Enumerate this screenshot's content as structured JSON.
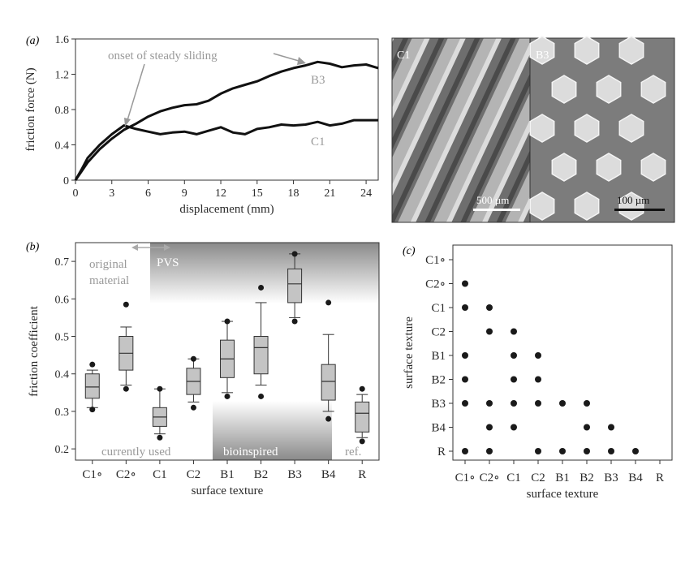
{
  "panel_a": {
    "panel_label": "(a)",
    "annotation_onset": "onset of steady sliding",
    "images": [
      {
        "label": "C1",
        "scale_bar": "500 µm"
      },
      {
        "label": "B3",
        "scale_bar": "100 µm"
      }
    ]
  },
  "panel_b": {
    "panel_label": "(b)",
    "region_labels": {
      "original_material": [
        "original",
        "material"
      ],
      "pvs": "PVS",
      "currently_used": "currently used",
      "bioinspired": "bioinspired",
      "ref": "ref."
    }
  },
  "panel_c": {
    "panel_label": "(c)"
  },
  "chart_data": [
    {
      "id": "a",
      "type": "line",
      "xlabel": "displacement (mm)",
      "ylabel": "friction force (N)",
      "xlim": [
        0,
        25
      ],
      "ylim": [
        0,
        1.6
      ],
      "xticks": [
        0,
        3,
        6,
        9,
        12,
        15,
        18,
        21,
        24
      ],
      "yticks": [
        0,
        0.4,
        0.8,
        1.2,
        1.6
      ],
      "series": [
        {
          "name": "B3",
          "x": [
            0,
            0.5,
            1,
            2,
            3,
            4,
            5,
            6,
            7,
            8,
            9,
            10,
            11,
            12,
            13,
            14,
            15,
            16,
            17,
            18,
            19,
            20,
            21,
            22,
            23,
            24,
            25
          ],
          "y": [
            0,
            0.1,
            0.2,
            0.35,
            0.47,
            0.57,
            0.64,
            0.72,
            0.78,
            0.82,
            0.85,
            0.86,
            0.9,
            0.98,
            1.04,
            1.08,
            1.12,
            1.18,
            1.23,
            1.27,
            1.3,
            1.34,
            1.32,
            1.28,
            1.3,
            1.31,
            1.27
          ]
        },
        {
          "name": "C1",
          "x": [
            0,
            0.5,
            1,
            2,
            3,
            4,
            5,
            6,
            7,
            8,
            9,
            10,
            11,
            12,
            13,
            14,
            15,
            16,
            17,
            18,
            19,
            20,
            21,
            22,
            23,
            24,
            25
          ],
          "y": [
            0,
            0.12,
            0.25,
            0.4,
            0.52,
            0.62,
            0.58,
            0.55,
            0.52,
            0.54,
            0.55,
            0.52,
            0.56,
            0.6,
            0.54,
            0.52,
            0.58,
            0.6,
            0.63,
            0.62,
            0.63,
            0.66,
            0.62,
            0.64,
            0.68,
            0.68,
            0.68
          ]
        }
      ]
    },
    {
      "id": "b",
      "type": "box",
      "xlabel": "surface texture",
      "ylabel": "friction coefficient",
      "ylim": [
        0.17,
        0.75
      ],
      "yticks": [
        0.2,
        0.3,
        0.4,
        0.5,
        0.6,
        0.7
      ],
      "categories": [
        "C1∘",
        "C2∘",
        "C1",
        "C2",
        "B1",
        "B2",
        "B3",
        "B4",
        "R"
      ],
      "boxes": [
        {
          "whisker_low": 0.31,
          "q1": 0.335,
          "median": 0.365,
          "q3": 0.4,
          "whisker_high": 0.41,
          "outliers": [
            0.305,
            0.425
          ]
        },
        {
          "whisker_low": 0.37,
          "q1": 0.41,
          "median": 0.455,
          "q3": 0.5,
          "whisker_high": 0.525,
          "outliers": [
            0.36,
            0.585
          ]
        },
        {
          "whisker_low": 0.24,
          "q1": 0.26,
          "median": 0.285,
          "q3": 0.31,
          "whisker_high": 0.36,
          "outliers": [
            0.23,
            0.36
          ]
        },
        {
          "whisker_low": 0.325,
          "q1": 0.345,
          "median": 0.38,
          "q3": 0.415,
          "whisker_high": 0.44,
          "outliers": [
            0.31,
            0.44
          ]
        },
        {
          "whisker_low": 0.35,
          "q1": 0.39,
          "median": 0.44,
          "q3": 0.49,
          "whisker_high": 0.54,
          "outliers": [
            0.34,
            0.54
          ]
        },
        {
          "whisker_low": 0.37,
          "q1": 0.4,
          "median": 0.47,
          "q3": 0.5,
          "whisker_high": 0.59,
          "outliers": [
            0.34,
            0.63
          ]
        },
        {
          "whisker_low": 0.55,
          "q1": 0.59,
          "median": 0.64,
          "q3": 0.68,
          "whisker_high": 0.72,
          "outliers": [
            0.54,
            0.72
          ]
        },
        {
          "whisker_low": 0.3,
          "q1": 0.33,
          "median": 0.38,
          "q3": 0.425,
          "whisker_high": 0.505,
          "outliers": [
            0.28,
            0.59
          ]
        },
        {
          "whisker_low": 0.23,
          "q1": 0.245,
          "median": 0.295,
          "q3": 0.325,
          "whisker_high": 0.345,
          "outliers": [
            0.22,
            0.36
          ]
        }
      ]
    },
    {
      "id": "c",
      "type": "scatter",
      "xlabel": "surface texture",
      "ylabel": "surface texture",
      "categories_x": [
        "C1∘",
        "C2∘",
        "C1",
        "C2",
        "B1",
        "B2",
        "B3",
        "B4",
        "R"
      ],
      "categories_y": [
        "C1∘",
        "C2∘",
        "C1",
        "C2",
        "B1",
        "B2",
        "B3",
        "B4",
        "R"
      ],
      "points": [
        [
          "C1∘",
          "C2∘"
        ],
        [
          "C1∘",
          "C1"
        ],
        [
          "C2∘",
          "C1"
        ],
        [
          "C2∘",
          "C2"
        ],
        [
          "C1",
          "C2"
        ],
        [
          "C1∘",
          "B1"
        ],
        [
          "C1",
          "B1"
        ],
        [
          "C2",
          "B1"
        ],
        [
          "C1∘",
          "B2"
        ],
        [
          "C1",
          "B2"
        ],
        [
          "C2",
          "B2"
        ],
        [
          "C1∘",
          "B3"
        ],
        [
          "C2∘",
          "B3"
        ],
        [
          "C1",
          "B3"
        ],
        [
          "C2",
          "B3"
        ],
        [
          "B1",
          "B3"
        ],
        [
          "B2",
          "B3"
        ],
        [
          "C2∘",
          "B4"
        ],
        [
          "C1",
          "B4"
        ],
        [
          "B2",
          "B4"
        ],
        [
          "B3",
          "B4"
        ],
        [
          "C1∘",
          "R"
        ],
        [
          "C2∘",
          "R"
        ],
        [
          "C2",
          "R"
        ],
        [
          "B1",
          "R"
        ],
        [
          "B2",
          "R"
        ],
        [
          "B3",
          "R"
        ],
        [
          "B4",
          "R"
        ]
      ]
    }
  ]
}
